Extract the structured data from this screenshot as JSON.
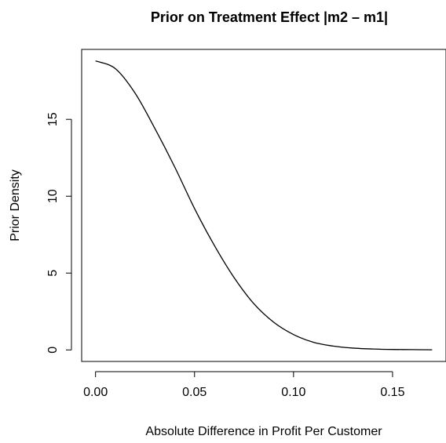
{
  "chart_data": {
    "type": "line",
    "title": "Prior on Treatment Effect |m2 – m1|",
    "xlabel": "Absolute Difference in Profit Per Customer",
    "ylabel": "Prior Density",
    "xlim": [
      -0.007,
      0.177
    ],
    "ylim": [
      -0.75,
      19.55
    ],
    "x_ticks": [
      0.0,
      0.05,
      0.1,
      0.15
    ],
    "x_tick_labels": [
      "0.00",
      "0.05",
      "0.10",
      "0.15"
    ],
    "y_ticks": [
      0,
      5,
      10,
      15
    ],
    "y_tick_labels": [
      "0",
      "5",
      "10",
      "15"
    ],
    "grid": false,
    "series": [
      {
        "color": "#000000",
        "x": [
          0.0,
          0.01,
          0.02,
          0.03,
          0.04,
          0.05,
          0.06,
          0.07,
          0.08,
          0.09,
          0.1,
          0.11,
          0.12,
          0.13,
          0.14,
          0.15,
          0.16,
          0.17
        ],
        "y": [
          18.8,
          18.3,
          16.7,
          14.4,
          11.9,
          9.2,
          6.8,
          4.7,
          3.0,
          1.8,
          1.0,
          0.5,
          0.25,
          0.12,
          0.06,
          0.03,
          0.02,
          0.01
        ]
      }
    ]
  }
}
